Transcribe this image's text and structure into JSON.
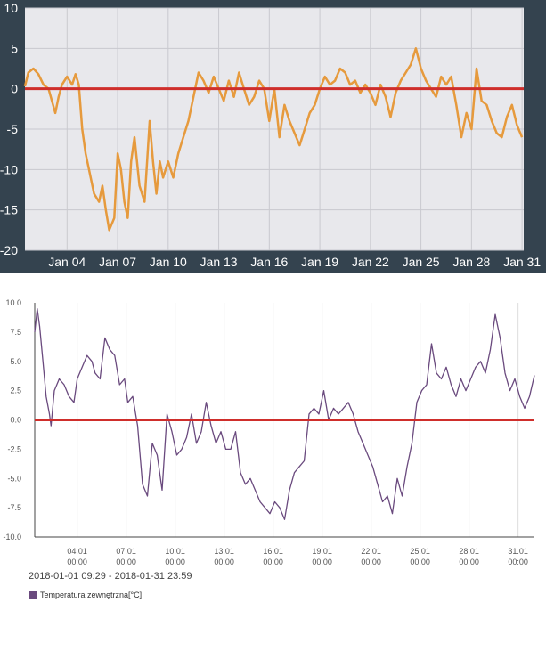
{
  "chart_data": [
    {
      "type": "line",
      "colors": {
        "background": "#34434f",
        "plot": "#e8e8ec",
        "line": "#e69a3d",
        "zero_line": "#cf2e2b",
        "text": "#ffffff"
      },
      "y_ticks": [
        "10",
        "5",
        "0",
        "-5",
        "-10",
        "-15",
        "-20"
      ],
      "ylim": [
        -20,
        10
      ],
      "x_ticks": [
        "Jan 04",
        "Jan 07",
        "Jan 10",
        "Jan 13",
        "Jan 16",
        "Jan 19",
        "Jan 22",
        "Jan 25",
        "Jan 28",
        "Jan 31"
      ],
      "x_tick_days": [
        4,
        7,
        10,
        13,
        16,
        19,
        22,
        25,
        28,
        31
      ],
      "xlim": [
        1.5,
        31.1
      ],
      "reference_line": 0,
      "grid": true,
      "series": [
        {
          "x": [
            1.5,
            1.7,
            2.0,
            2.3,
            2.6,
            2.9,
            3.1,
            3.3,
            3.5,
            3.7,
            4.0,
            4.3,
            4.5,
            4.7,
            4.9,
            5.1,
            5.3,
            5.6,
            5.9,
            6.1,
            6.3,
            6.5,
            6.8,
            7.0,
            7.2,
            7.4,
            7.6,
            7.8,
            8.0,
            8.3,
            8.6,
            8.9,
            9.1,
            9.3,
            9.5,
            9.7,
            10.0,
            10.3,
            10.6,
            10.9,
            11.2,
            11.5,
            11.8,
            12.1,
            12.4,
            12.7,
            13.0,
            13.3,
            13.6,
            13.9,
            14.2,
            14.5,
            14.8,
            15.1,
            15.4,
            15.7,
            16.0,
            16.3,
            16.6,
            16.9,
            17.2,
            17.5,
            17.8,
            18.1,
            18.4,
            18.7,
            19.0,
            19.3,
            19.6,
            19.9,
            20.2,
            20.5,
            20.8,
            21.1,
            21.4,
            21.7,
            22.0,
            22.3,
            22.6,
            22.9,
            23.2,
            23.5,
            23.8,
            24.1,
            24.4,
            24.7,
            25.0,
            25.3,
            25.6,
            25.9,
            26.2,
            26.5,
            26.8,
            27.1,
            27.4,
            27.7,
            28.0,
            28.3,
            28.6,
            28.9,
            29.2,
            29.5,
            29.8,
            30.1,
            30.4,
            30.7,
            31.0
          ],
          "y": [
            0.3,
            2.0,
            2.5,
            1.8,
            0.5,
            0.0,
            -1.5,
            -3.0,
            -1.0,
            0.5,
            1.5,
            0.5,
            1.8,
            0.5,
            -5.0,
            -8.0,
            -10.0,
            -13.0,
            -14.0,
            -12.0,
            -15.0,
            -17.5,
            -16.0,
            -8.0,
            -10.0,
            -14.0,
            -16.0,
            -9.0,
            -6.0,
            -12.0,
            -14.0,
            -4.0,
            -9.0,
            -13.0,
            -9.0,
            -11.0,
            -9.0,
            -11.0,
            -8.0,
            -6.0,
            -4.0,
            -1.0,
            2.0,
            1.0,
            -0.5,
            1.5,
            0.0,
            -1.5,
            1.0,
            -1.0,
            2.0,
            0.0,
            -2.0,
            -1.0,
            1.0,
            0.0,
            -4.0,
            0.0,
            -6.0,
            -2.0,
            -4.0,
            -5.5,
            -7.0,
            -5.0,
            -3.0,
            -2.0,
            0.0,
            1.5,
            0.5,
            1.0,
            2.5,
            2.0,
            0.5,
            1.0,
            -0.5,
            0.5,
            -0.5,
            -2.0,
            0.5,
            -1.0,
            -3.5,
            -0.5,
            1.0,
            2.0,
            3.0,
            5.0,
            2.5,
            1.0,
            0.0,
            -1.0,
            1.5,
            0.5,
            1.5,
            -2.0,
            -6.0,
            -3.0,
            -5.0,
            2.5,
            -1.5,
            -2.0,
            -4.0,
            -5.5,
            -6.0,
            -3.5,
            -2.0,
            -4.5,
            -6.0
          ]
        }
      ]
    },
    {
      "type": "line",
      "colors": {
        "background": "#ffffff",
        "line": "#6a4a7e",
        "zero_line": "#cf2e2b",
        "grid": "#dddddd",
        "text": "#555555"
      },
      "y_ticks": [
        "10.0",
        "7.5",
        "5.0",
        "2.5",
        "0.0",
        "-2.5",
        "-5.0",
        "-7.5",
        "-10.0"
      ],
      "ylim": [
        -10,
        10
      ],
      "x_ticks": [
        [
          "04.01",
          "00:00"
        ],
        [
          "07.01",
          "00:00"
        ],
        [
          "10.01",
          "00:00"
        ],
        [
          "13.01",
          "00:00"
        ],
        [
          "16.01",
          "00:00"
        ],
        [
          "19.01",
          "00:00"
        ],
        [
          "22.01",
          "00:00"
        ],
        [
          "25.01",
          "00:00"
        ],
        [
          "28.01",
          "00:00"
        ],
        [
          "31.01",
          "00:00"
        ]
      ],
      "x_tick_days": [
        4,
        7,
        10,
        13,
        16,
        19,
        22,
        25,
        28,
        31
      ],
      "xlim": [
        1.4,
        32.0
      ],
      "reference_line": 0,
      "grid": true,
      "time_range": "2018-01-01 09:29 - 2018-01-31 23:59",
      "series": [
        {
          "name": "Temperatura zewnętrzna[°C]",
          "x": [
            1.4,
            1.55,
            1.7,
            1.9,
            2.1,
            2.3,
            2.4,
            2.6,
            2.9,
            3.2,
            3.5,
            3.8,
            4.0,
            4.3,
            4.6,
            4.9,
            5.1,
            5.4,
            5.7,
            6.0,
            6.3,
            6.6,
            6.9,
            7.1,
            7.4,
            7.7,
            8.0,
            8.3,
            8.6,
            8.9,
            9.2,
            9.5,
            9.8,
            10.1,
            10.4,
            10.7,
            11.0,
            11.3,
            11.6,
            11.9,
            12.2,
            12.5,
            12.8,
            13.1,
            13.4,
            13.7,
            14.0,
            14.3,
            14.6,
            14.9,
            15.2,
            15.5,
            15.8,
            16.1,
            16.4,
            16.7,
            17.0,
            17.3,
            17.6,
            17.9,
            18.2,
            18.5,
            18.8,
            19.1,
            19.4,
            19.7,
            20.0,
            20.3,
            20.6,
            20.9,
            21.2,
            21.5,
            21.8,
            22.1,
            22.4,
            22.7,
            23.0,
            23.3,
            23.6,
            23.9,
            24.2,
            24.5,
            24.8,
            25.1,
            25.4,
            25.7,
            26.0,
            26.3,
            26.6,
            26.9,
            27.2,
            27.5,
            27.8,
            28.1,
            28.4,
            28.7,
            29.0,
            29.3,
            29.6,
            29.9,
            30.2,
            30.5,
            30.8,
            31.1,
            31.4,
            31.7,
            32.0
          ],
          "y": [
            7.5,
            9.5,
            8.0,
            5.0,
            2.0,
            0.5,
            -0.5,
            2.5,
            3.5,
            3.0,
            2.0,
            1.5,
            3.5,
            4.5,
            5.5,
            5.0,
            4.0,
            3.5,
            7.0,
            6.0,
            5.5,
            3.0,
            3.5,
            1.5,
            2.0,
            -0.5,
            -5.5,
            -6.5,
            -2.0,
            -3.0,
            -6.0,
            0.5,
            -1.0,
            -3.0,
            -2.5,
            -1.5,
            0.5,
            -2.0,
            -1.0,
            1.5,
            -0.5,
            -2.0,
            -1.0,
            -2.5,
            -2.5,
            -1.0,
            -4.5,
            -5.5,
            -5.0,
            -6.0,
            -7.0,
            -7.5,
            -8.0,
            -7.0,
            -7.5,
            -8.5,
            -6.0,
            -4.5,
            -4.0,
            -3.5,
            0.5,
            1.0,
            0.5,
            2.5,
            0.0,
            1.0,
            0.5,
            1.0,
            1.5,
            0.5,
            -1.0,
            -2.0,
            -3.0,
            -4.0,
            -5.5,
            -7.0,
            -6.5,
            -8.0,
            -5.0,
            -6.5,
            -4.0,
            -2.0,
            1.5,
            2.5,
            3.0,
            6.5,
            4.0,
            3.5,
            4.5,
            3.0,
            2.0,
            3.5,
            2.5,
            3.5,
            4.5,
            5.0,
            4.0,
            6.0,
            9.0,
            7.0,
            4.0,
            2.5,
            3.5,
            2.0,
            1.0,
            2.0,
            3.8
          ]
        }
      ]
    }
  ]
}
